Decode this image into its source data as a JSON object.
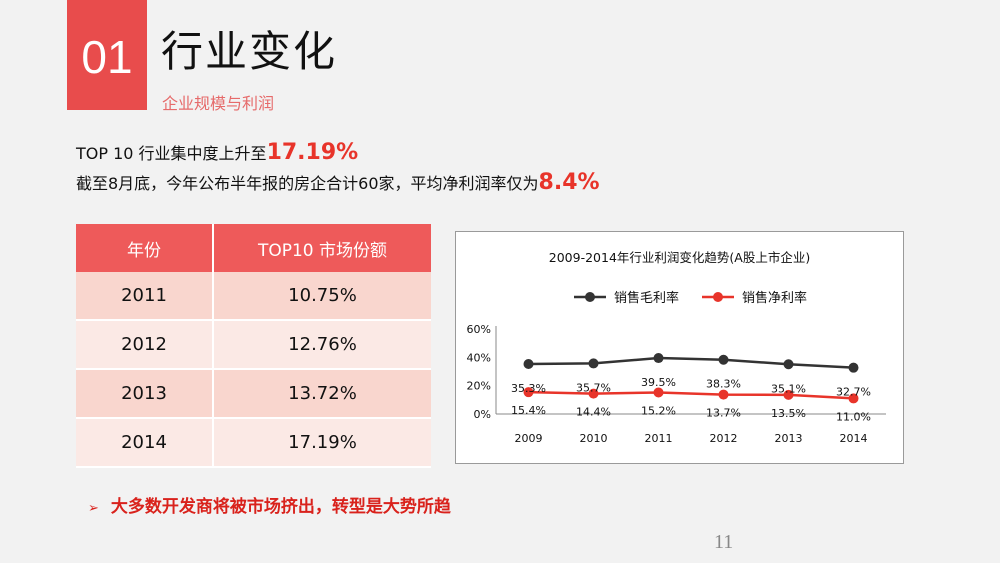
{
  "header": {
    "number": "01",
    "title": "行业变化",
    "subtitle": "企业规模与利润"
  },
  "summary": {
    "line1_prefix": "TOP 10 行业集中度上升至",
    "line1_highlight": "17.19%",
    "line2_prefix": "截至8月底，今年公布半年报的房企合计60家，平均净利润率仅为",
    "line2_highlight": "8.4%"
  },
  "table": {
    "headers": [
      "年份",
      "TOP10  市场份额"
    ],
    "rows": [
      [
        "2011",
        "10.75%"
      ],
      [
        "2012",
        "12.76%"
      ],
      [
        "2013",
        "13.72%"
      ],
      [
        "2014",
        "17.19%"
      ]
    ]
  },
  "chart_data": {
    "type": "line",
    "title": "2009-2014年行业利润变化趋势(A股上市企业)",
    "categories": [
      "2009",
      "2010",
      "2011",
      "2012",
      "2013",
      "2014"
    ],
    "series": [
      {
        "name": "销售毛利率",
        "color": "#333333",
        "values": [
          35.3,
          35.7,
          39.5,
          38.3,
          35.1,
          32.7
        ],
        "labels": [
          "35.3%",
          "35.7%",
          "39.5%",
          "38.3%",
          "35.1%",
          "32.7%"
        ]
      },
      {
        "name": "销售净利率",
        "color": "#e8342a",
        "values": [
          15.4,
          14.4,
          15.2,
          13.7,
          13.5,
          11.0
        ],
        "labels": [
          "15.4%",
          "14.4%",
          "15.2%",
          "13.7%",
          "13.5%",
          "11.0%"
        ]
      }
    ],
    "y_ticks": [
      "0%",
      "20%",
      "40%",
      "60%"
    ],
    "ylim": [
      0,
      60
    ],
    "grid": false,
    "legend_position": "top"
  },
  "footer": {
    "bullet_arrow": "➢",
    "bullet_text": "大多数开发商将被市场挤出，转型是大势所趋",
    "page_number": "11"
  }
}
